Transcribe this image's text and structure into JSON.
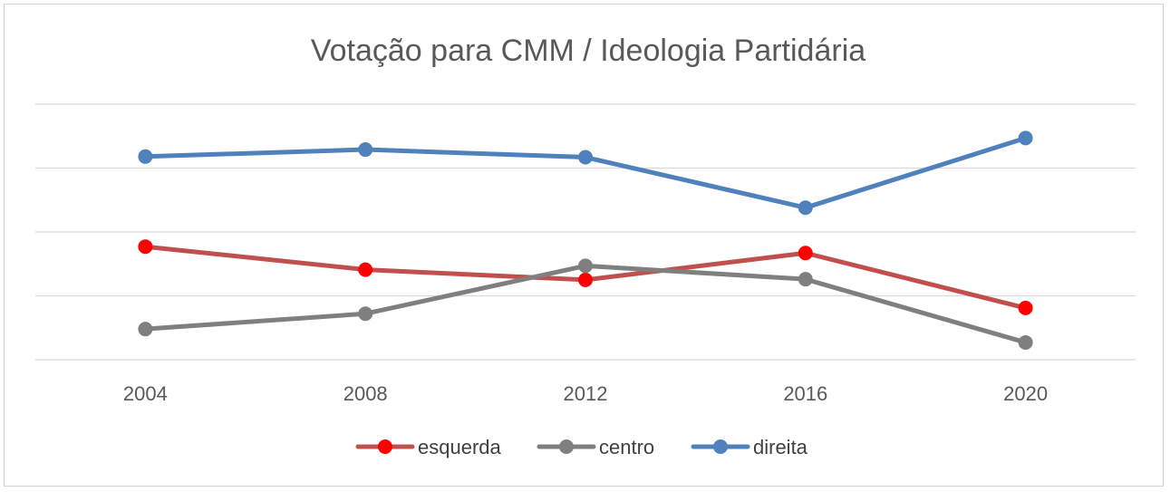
{
  "chart_data": {
    "type": "line",
    "title": "Votação para CMM / Ideologia Partidária",
    "xlabel": "",
    "ylabel": "",
    "x": [
      "2004",
      "2008",
      "2012",
      "2016",
      "2020"
    ],
    "ylim": [
      0,
      4
    ],
    "y_gridlines": [
      0,
      1,
      2,
      3,
      4
    ],
    "y_tick_labels_shown": false,
    "grid": true,
    "legend_position": "bottom",
    "series": [
      {
        "name": "esquerda",
        "line_color": "#C0504D",
        "marker_color": "#FF0000",
        "values": [
          1.77,
          1.41,
          1.25,
          1.67,
          0.81
        ]
      },
      {
        "name": "centro",
        "line_color": "#7F7F7F",
        "marker_color": "#7F7F7F",
        "values": [
          0.48,
          0.72,
          1.47,
          1.26,
          0.27
        ]
      },
      {
        "name": "direita",
        "line_color": "#4F81BD",
        "marker_color": "#4F81BD",
        "values": [
          3.18,
          3.29,
          3.17,
          2.38,
          3.47
        ]
      }
    ]
  }
}
